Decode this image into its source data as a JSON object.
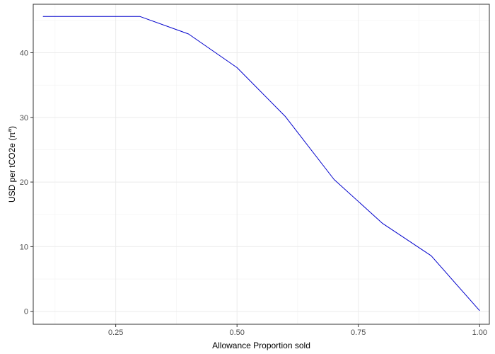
{
  "chart_data": {
    "type": "line",
    "title": "",
    "xlabel": "Allowance Proportion sold",
    "ylabel": "USD per tCO2e (π",
    "ylabel_superscript": "a",
    "ylabel_close": ")",
    "xlim": [
      0.08,
      1.02
    ],
    "ylim": [
      -2,
      47.5
    ],
    "x_ticks": [
      0.25,
      0.5,
      0.75,
      1.0
    ],
    "x_tick_labels": [
      "0.25",
      "0.50",
      "0.75",
      "1.00"
    ],
    "y_ticks": [
      0,
      10,
      20,
      30,
      40
    ],
    "y_tick_labels": [
      "0",
      "10",
      "20",
      "30",
      "40"
    ],
    "x_minor_ticks": [
      0.125,
      0.375,
      0.625,
      0.875
    ],
    "y_minor_ticks": [
      5,
      15,
      25,
      35,
      45
    ],
    "grid": true,
    "legend": "none",
    "series": [
      {
        "color": "#0000cc",
        "x": [
          0.1,
          0.2,
          0.3,
          0.4,
          0.5,
          0.6,
          0.7,
          0.8,
          0.9,
          1.0
        ],
        "y": [
          45.6,
          45.6,
          45.6,
          42.9,
          37.7,
          30.1,
          20.4,
          13.6,
          8.6,
          0.1
        ]
      }
    ]
  }
}
